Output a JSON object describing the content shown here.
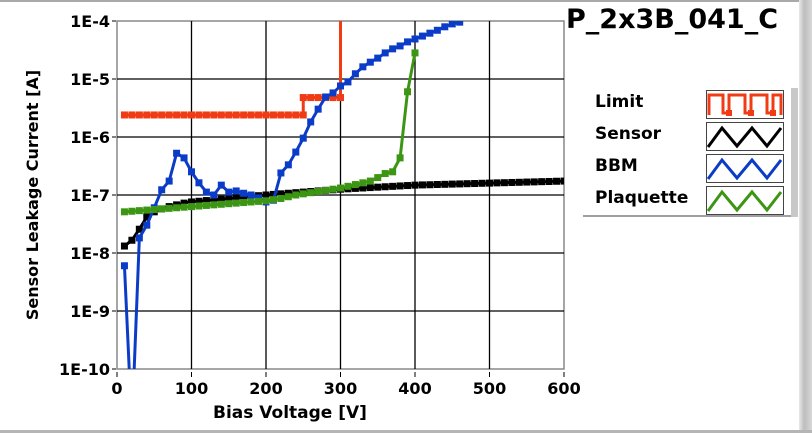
{
  "chart_data": {
    "type": "line",
    "title": "P_2x3B_041_C",
    "xlabel": "Bias Voltage [V]",
    "ylabel": "Sensor Leakage Current [A]",
    "xlim": [
      0,
      600
    ],
    "ylim": [
      1e-10,
      0.0001
    ],
    "y_scale": "log",
    "y_values_format": "log10 of current in A",
    "grid": true,
    "legend_position": "right",
    "x_ticks": [
      "0",
      "100",
      "200",
      "300",
      "400",
      "500",
      "600"
    ],
    "y_ticks": [
      "1E-4",
      "1E-5",
      "1E-6",
      "1E-7",
      "1E-8",
      "1E-9",
      "1E-10"
    ],
    "series": [
      {
        "name": "Limit",
        "color": "#f03c14",
        "style": "step",
        "x": [
          10,
          20,
          30,
          40,
          50,
          60,
          70,
          80,
          90,
          100,
          110,
          120,
          130,
          140,
          150,
          160,
          170,
          180,
          190,
          200,
          210,
          220,
          230,
          240,
          250,
          250,
          260,
          270,
          280,
          290,
          300,
          300
        ],
        "log10_y": [
          -5.62,
          -5.62,
          -5.62,
          -5.62,
          -5.62,
          -5.62,
          -5.62,
          -5.62,
          -5.62,
          -5.62,
          -5.62,
          -5.62,
          -5.62,
          -5.62,
          -5.62,
          -5.62,
          -5.62,
          -5.62,
          -5.62,
          -5.62,
          -5.62,
          -5.62,
          -5.62,
          -5.62,
          -5.62,
          -5.32,
          -5.32,
          -5.32,
          -5.32,
          -5.32,
          -5.32,
          -3.0
        ]
      },
      {
        "name": "Sensor",
        "color": "#000000",
        "x": [
          10,
          20,
          30,
          40,
          50,
          60,
          70,
          80,
          90,
          100,
          110,
          120,
          130,
          140,
          150,
          160,
          170,
          180,
          190,
          200,
          210,
          220,
          230,
          240,
          250,
          260,
          270,
          280,
          290,
          300,
          310,
          320,
          330,
          340,
          350,
          360,
          370,
          380,
          390,
          400,
          410,
          420,
          430,
          440,
          450,
          460,
          470,
          480,
          490,
          500,
          510,
          520,
          530,
          540,
          550,
          560,
          570,
          580,
          590,
          600
        ],
        "log10_y": [
          -7.88,
          -7.78,
          -7.59,
          -7.38,
          -7.29,
          -7.24,
          -7.2,
          -7.17,
          -7.14,
          -7.12,
          -7.108,
          -7.096,
          -7.084,
          -7.072,
          -7.06,
          -7.048,
          -7.036,
          -7.024,
          -7.012,
          -7.0,
          -6.99,
          -6.98,
          -6.97,
          -6.96,
          -6.95,
          -6.94,
          -6.93,
          -6.92,
          -6.91,
          -6.9,
          -6.893,
          -6.886,
          -6.879,
          -6.872,
          -6.865,
          -6.858,
          -6.851,
          -6.844,
          -6.837,
          -6.83,
          -6.826,
          -6.823,
          -6.819,
          -6.816,
          -6.812,
          -6.809,
          -6.805,
          -6.802,
          -6.798,
          -6.795,
          -6.791,
          -6.788,
          -6.784,
          -6.781,
          -6.777,
          -6.774,
          -6.77,
          -6.767,
          -6.763,
          -6.76
        ]
      },
      {
        "name": "BBM",
        "color": "#0a3cc8",
        "x": [
          10,
          20,
          30,
          40,
          50,
          60,
          70,
          80,
          90,
          100,
          110,
          120,
          130,
          140,
          150,
          160,
          170,
          180,
          190,
          200,
          210,
          220,
          230,
          240,
          250,
          260,
          270,
          280,
          290,
          300,
          310,
          320,
          330,
          340,
          350,
          360,
          370,
          380,
          390,
          400,
          410,
          420,
          430,
          440,
          450,
          460
        ],
        "log10_y": [
          -8.22,
          -11,
          -7.74,
          -7.52,
          -7.22,
          -6.91,
          -6.76,
          -6.28,
          -6.36,
          -6.6,
          -6.79,
          -6.95,
          -7.0,
          -6.83,
          -6.95,
          -6.93,
          -6.97,
          -7.0,
          -7.05,
          -7.12,
          -7.09,
          -6.62,
          -6.48,
          -6.26,
          -6.02,
          -5.74,
          -5.52,
          -5.31,
          -5.24,
          -5.12,
          -5.05,
          -4.91,
          -4.79,
          -4.71,
          -4.64,
          -4.55,
          -4.48,
          -4.43,
          -4.36,
          -4.31,
          -4.26,
          -4.21,
          -4.16,
          -4.1,
          -4.05,
          -4.02
        ]
      },
      {
        "name": "Plaquette",
        "color": "#3c9614",
        "x": [
          10,
          20,
          30,
          40,
          50,
          60,
          70,
          80,
          90,
          100,
          110,
          120,
          130,
          140,
          150,
          160,
          170,
          180,
          190,
          200,
          210,
          220,
          230,
          240,
          250,
          260,
          270,
          280,
          290,
          300,
          310,
          320,
          330,
          340,
          350,
          360,
          370,
          380,
          390,
          400
        ],
        "log10_y": [
          -7.29,
          -7.28,
          -7.27,
          -7.26,
          -7.25,
          -7.24,
          -7.23,
          -7.22,
          -7.21,
          -7.2,
          -7.19,
          -7.18,
          -7.17,
          -7.16,
          -7.15,
          -7.14,
          -7.13,
          -7.12,
          -7.11,
          -7.1,
          -7.08,
          -7.06,
          -7.03,
          -7.0,
          -6.98,
          -6.96,
          -6.94,
          -6.92,
          -6.9,
          -6.88,
          -6.85,
          -6.82,
          -6.79,
          -6.76,
          -6.7,
          -6.63,
          -6.6,
          -6.36,
          -5.22,
          -4.55
        ]
      }
    ]
  },
  "legend": {
    "items": [
      "Limit",
      "Sensor",
      "BBM",
      "Plaquette"
    ]
  }
}
